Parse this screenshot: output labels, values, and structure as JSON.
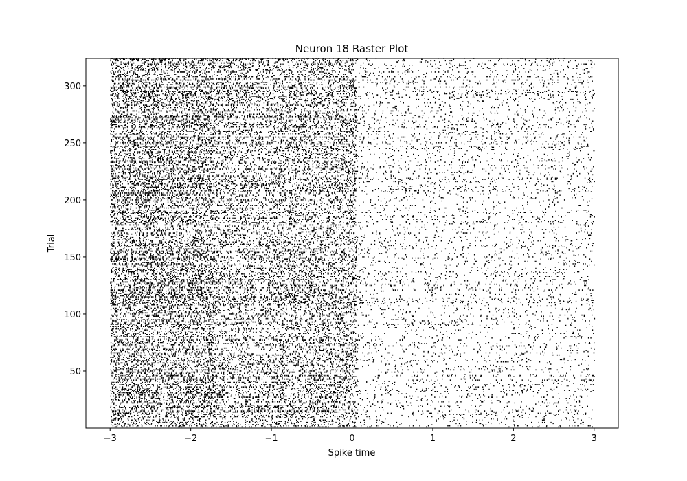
{
  "chart_data": {
    "type": "scatter",
    "subtype": "raster",
    "title": "Neuron 18 Raster Plot",
    "xlabel": "Spike time",
    "ylabel": "Trial",
    "xlim": [
      -3.3,
      3.3
    ],
    "ylim": [
      0,
      324
    ],
    "x_ticks": [
      -3,
      -2,
      -1,
      0,
      1,
      2,
      3
    ],
    "x_tick_labels": [
      "−3",
      "−2",
      "−1",
      "0",
      "1",
      "2",
      "3"
    ],
    "y_ticks": [
      50,
      100,
      150,
      200,
      250,
      300
    ],
    "y_tick_labels": [
      "50",
      "100",
      "150",
      "200",
      "250",
      "300"
    ],
    "grid": false,
    "marker_color": "#000000",
    "n_trials": 324,
    "spike_time_range": [
      -3,
      3
    ],
    "rate_profile": [
      {
        "from": -3.0,
        "to": -1.7,
        "rate_low": 18,
        "rate_high": 38
      },
      {
        "from": -1.7,
        "to": -0.9,
        "rate_low": 6,
        "rate_high": 34
      },
      {
        "from": -0.9,
        "to": 0.05,
        "rate_low": 14,
        "rate_high": 30
      },
      {
        "from": 0.05,
        "to": 3.0,
        "rate_low": 1.5,
        "rate_high": 10
      }
    ]
  }
}
